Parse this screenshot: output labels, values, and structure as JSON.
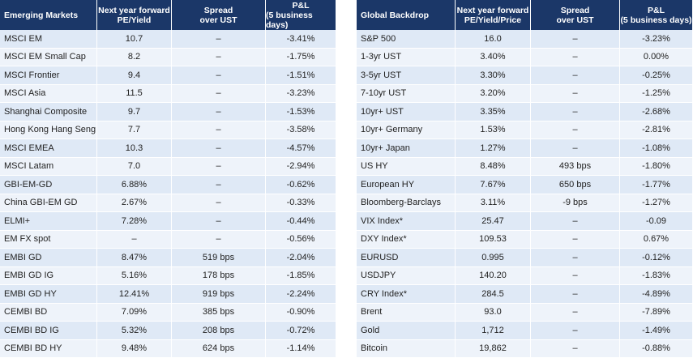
{
  "left": {
    "columns": [
      [
        "Emerging Markets"
      ],
      [
        "Next year forward",
        "PE/Yield"
      ],
      [
        "Spread",
        "over UST"
      ],
      [
        "P&L",
        "(5 business days)"
      ]
    ],
    "rows": [
      [
        "MSCI EM",
        "10.7",
        "–",
        "-3.41%"
      ],
      [
        "MSCI EM Small Cap",
        "8.2",
        "–",
        "-1.75%"
      ],
      [
        "MSCI Frontier",
        "9.4",
        "–",
        "-1.51%"
      ],
      [
        "MSCI Asia",
        "11.5",
        "–",
        "-3.23%"
      ],
      [
        "Shanghai Composite",
        "9.7",
        "–",
        "-1.53%"
      ],
      [
        "Hong Kong Hang Seng",
        "7.7",
        "–",
        "-3.58%"
      ],
      [
        "MSCI EMEA",
        "10.3",
        "–",
        "-4.57%"
      ],
      [
        "MSCI Latam",
        "7.0",
        "–",
        "-2.94%"
      ],
      [
        "GBI-EM-GD",
        "6.88%",
        "–",
        "-0.62%"
      ],
      [
        "China GBI-EM GD",
        "2.67%",
        "–",
        "-0.33%"
      ],
      [
        "ELMI+",
        "7.28%",
        "–",
        "-0.44%"
      ],
      [
        "EM FX spot",
        "–",
        "–",
        "-0.56%"
      ],
      [
        "EMBI GD",
        "8.47%",
        "519 bps",
        "-2.04%"
      ],
      [
        "EMBI GD IG",
        "5.16%",
        "178 bps",
        "-1.85%"
      ],
      [
        "EMBI GD HY",
        "12.41%",
        "919 bps",
        "-2.24%"
      ],
      [
        "CEMBI BD",
        "7.09%",
        "385 bps",
        "-0.90%"
      ],
      [
        "CEMBI BD IG",
        "5.32%",
        "208 bps",
        "-0.72%"
      ],
      [
        "CEMBI BD HY",
        "9.48%",
        "624 bps",
        "-1.14%"
      ]
    ]
  },
  "right": {
    "columns": [
      [
        "Global Backdrop"
      ],
      [
        "Next year forward",
        "PE/Yield/Price"
      ],
      [
        "Spread",
        "over UST"
      ],
      [
        "P&L",
        "(5 business days)"
      ]
    ],
    "rows": [
      [
        "S&P 500",
        "16.0",
        "–",
        "-3.23%"
      ],
      [
        "1-3yr UST",
        "3.40%",
        "–",
        "0.00%"
      ],
      [
        "3-5yr UST",
        "3.30%",
        "–",
        "-0.25%"
      ],
      [
        "7-10yr UST",
        "3.20%",
        "–",
        "-1.25%"
      ],
      [
        "10yr+ UST",
        "3.35%",
        "–",
        "-2.68%"
      ],
      [
        "10yr+ Germany",
        "1.53%",
        "–",
        "-2.81%"
      ],
      [
        "10yr+ Japan",
        "1.27%",
        "–",
        "-1.08%"
      ],
      [
        "US HY",
        "8.48%",
        "493 bps",
        "-1.80%"
      ],
      [
        "European HY",
        "7.67%",
        "650 bps",
        "-1.77%"
      ],
      [
        "Bloomberg-Barclays",
        "3.11%",
        "-9 bps",
        "-1.27%"
      ],
      [
        "VIX Index*",
        "25.47",
        "–",
        "-0.09"
      ],
      [
        "DXY Index*",
        "109.53",
        "–",
        "0.67%"
      ],
      [
        "EURUSD",
        "0.995",
        "–",
        "-0.12%"
      ],
      [
        "USDJPY",
        "140.20",
        "–",
        "-1.83%"
      ],
      [
        "CRY Index*",
        "284.5",
        "–",
        "-4.89%"
      ],
      [
        "Brent",
        "93.0",
        "–",
        "-7.89%"
      ],
      [
        "Gold",
        "1,712",
        "–",
        "-1.49%"
      ],
      [
        "Bitcoin",
        "19,862",
        "–",
        "-0.88%"
      ]
    ]
  }
}
